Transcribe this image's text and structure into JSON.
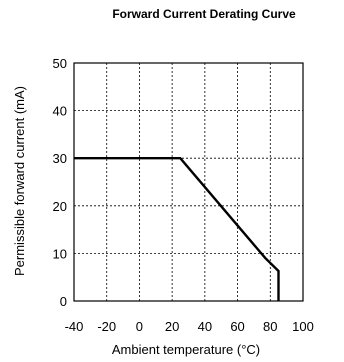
{
  "chart_data": {
    "type": "line",
    "title": "Forward Current Derating  Curve",
    "xlabel": "Ambient temperature (°C)",
    "ylabel": "Permissible forward current (mA)",
    "xlim": [
      -40,
      100
    ],
    "ylim": [
      0,
      50
    ],
    "xticks": [
      -40,
      -20,
      0,
      20,
      40,
      60,
      80,
      100
    ],
    "yticks": [
      0,
      10,
      20,
      30,
      40,
      50
    ],
    "grid": true,
    "series": [
      {
        "x": [
          -40,
          25,
          77,
          85,
          85
        ],
        "y": [
          30,
          30,
          9,
          6.3,
          0
        ]
      }
    ]
  }
}
